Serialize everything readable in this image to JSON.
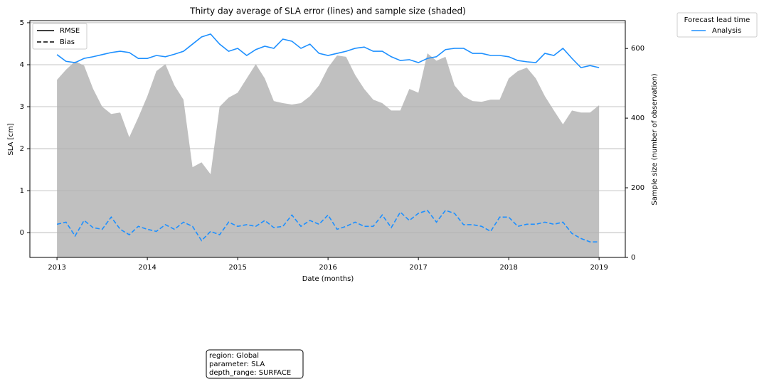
{
  "chart_data": {
    "type": "line",
    "title": "Thirty day average of SLA error (lines) and sample size (shaded)",
    "xlabel": "Date (months)",
    "ylabel": "SLA [cm]",
    "y2label": "Sample size (number of observation)",
    "x": [
      2013.0,
      2013.1,
      2013.2,
      2013.3,
      2013.4,
      2013.5,
      2013.6,
      2013.7,
      2013.8,
      2013.9,
      2014.0,
      2014.1,
      2014.2,
      2014.3,
      2014.4,
      2014.5,
      2014.6,
      2014.7,
      2014.8,
      2014.9,
      2015.0,
      2015.1,
      2015.2,
      2015.3,
      2015.4,
      2015.5,
      2015.6,
      2015.7,
      2015.8,
      2015.9,
      2016.0,
      2016.1,
      2016.2,
      2016.3,
      2016.4,
      2016.5,
      2016.6,
      2016.7,
      2016.8,
      2016.9,
      2017.0,
      2017.1,
      2017.2,
      2017.3,
      2017.4,
      2017.5,
      2017.6,
      2017.7,
      2017.8,
      2017.9,
      2018.0,
      2018.1,
      2018.2,
      2018.3,
      2018.4,
      2018.5,
      2018.6,
      2018.7,
      2018.8,
      2018.9,
      2019.0
    ],
    "xlim": [
      2012.7,
      2019.29
    ],
    "xticks": [
      2013,
      2014,
      2015,
      2016,
      2017,
      2018,
      2019
    ],
    "ylim": [
      -0.59,
      5.05
    ],
    "yticks": [
      0,
      1,
      2,
      3,
      4,
      5
    ],
    "y2lim": [
      0,
      680
    ],
    "y2ticks": [
      0,
      200,
      400,
      600
    ],
    "grid": true,
    "series": [
      {
        "name": "RMSE",
        "color": "#1e90ff",
        "dash": "solid",
        "values": [
          4.24,
          4.08,
          4.05,
          4.15,
          4.19,
          4.24,
          4.29,
          4.32,
          4.29,
          4.15,
          4.15,
          4.22,
          4.19,
          4.25,
          4.32,
          4.49,
          4.66,
          4.73,
          4.49,
          4.32,
          4.39,
          4.22,
          4.36,
          4.44,
          4.39,
          4.61,
          4.56,
          4.39,
          4.49,
          4.27,
          4.22,
          4.27,
          4.32,
          4.39,
          4.42,
          4.32,
          4.32,
          4.19,
          4.1,
          4.12,
          4.05,
          4.15,
          4.19,
          4.36,
          4.39,
          4.39,
          4.27,
          4.27,
          4.22,
          4.22,
          4.19,
          4.1,
          4.07,
          4.05,
          4.27,
          4.22,
          4.39,
          4.15,
          3.93,
          3.98,
          3.93
        ]
      },
      {
        "name": "Bias",
        "color": "#1e90ff",
        "dash": "dashed",
        "values": [
          0.2,
          0.25,
          -0.08,
          0.29,
          0.12,
          0.08,
          0.37,
          0.08,
          -0.05,
          0.15,
          0.08,
          0.03,
          0.19,
          0.08,
          0.25,
          0.15,
          -0.19,
          0.03,
          -0.05,
          0.25,
          0.15,
          0.19,
          0.15,
          0.29,
          0.12,
          0.15,
          0.42,
          0.15,
          0.29,
          0.2,
          0.42,
          0.08,
          0.15,
          0.25,
          0.15,
          0.15,
          0.42,
          0.12,
          0.49,
          0.29,
          0.46,
          0.53,
          0.25,
          0.53,
          0.46,
          0.19,
          0.19,
          0.15,
          0.03,
          0.37,
          0.37,
          0.15,
          0.2,
          0.2,
          0.25,
          0.2,
          0.25,
          -0.02,
          -0.14,
          -0.22,
          -0.22
        ]
      },
      {
        "kind": "area",
        "axis": "y2",
        "color": "#c0c0c0",
        "values": [
          510,
          539,
          563,
          551,
          484,
          433,
          412,
          416,
          345,
          402,
          463,
          535,
          555,
          494,
          453,
          259,
          273,
          239,
          433,
          459,
          473,
          514,
          555,
          514,
          449,
          443,
          439,
          443,
          463,
          494,
          545,
          580,
          576,
          524,
          484,
          453,
          443,
          422,
          422,
          484,
          473,
          586,
          565,
          576,
          494,
          463,
          449,
          447,
          453,
          453,
          514,
          535,
          545,
          514,
          463,
          422,
          382,
          422,
          416,
          416,
          437
        ]
      }
    ],
    "style_legend": [
      {
        "label": "RMSE",
        "dash": "solid"
      },
      {
        "label": "Bias",
        "dash": "dashed"
      }
    ],
    "color_legend": {
      "title": "Forecast lead time",
      "entries": [
        {
          "label": "Analysis",
          "color": "#1e90ff"
        }
      ]
    },
    "annotation": [
      "region: Global",
      "parameter: SLA",
      "depth_range: SURFACE"
    ]
  }
}
